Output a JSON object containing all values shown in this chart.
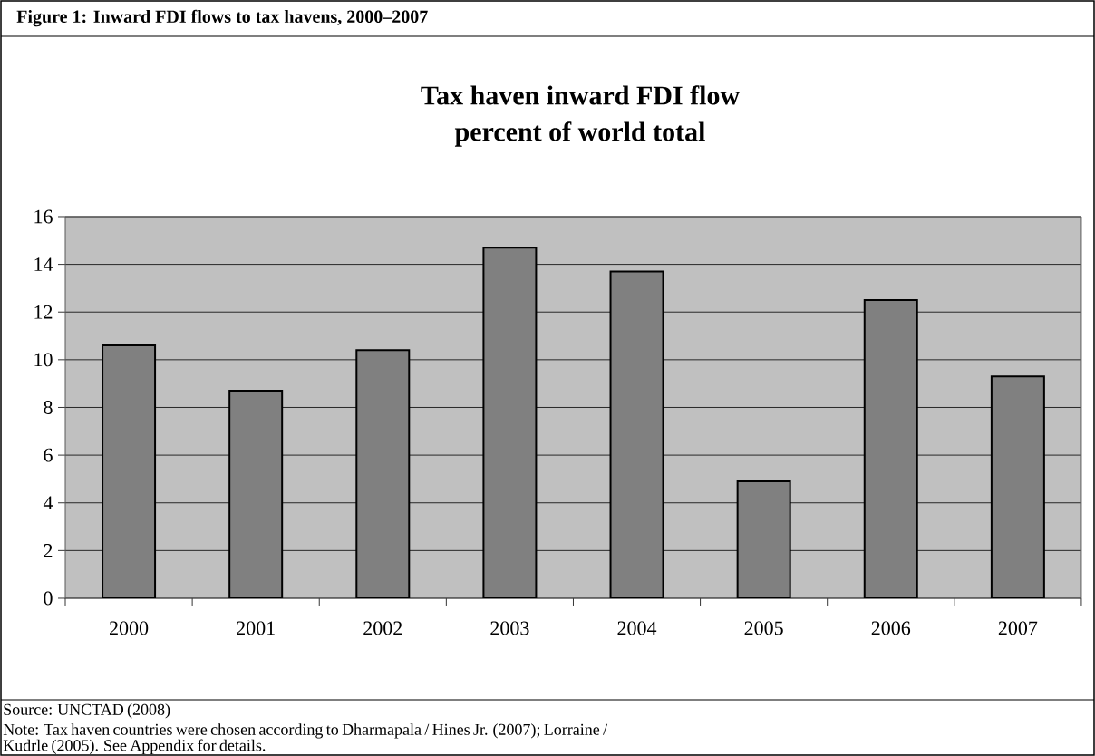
{
  "chart_data": {
    "type": "bar",
    "title": "Tax haven inward FDI flow",
    "subtitle": "percent of world total",
    "categories": [
      "2000",
      "2001",
      "2002",
      "2003",
      "2004",
      "2005",
      "2006",
      "2007"
    ],
    "values": [
      10.6,
      8.7,
      10.4,
      14.7,
      13.7,
      4.9,
      12.5,
      9.3
    ],
    "color": "#808080",
    "ylim": [
      0,
      16
    ],
    "yticks": [
      0,
      2,
      4,
      6,
      8,
      10,
      12,
      14,
      16
    ],
    "grid": "y",
    "annotations": [
      "**Figure 1: Inward FDI flows to tax havens, 2000–2007**",
      "Source: UNCTAD (2008)",
      "Note: Tax haven countries were chosen according to Dharmapala / Hines Jr. (2007); Lorraine / Kudrle (2005). See Appendix for details."
    ]
  }
}
